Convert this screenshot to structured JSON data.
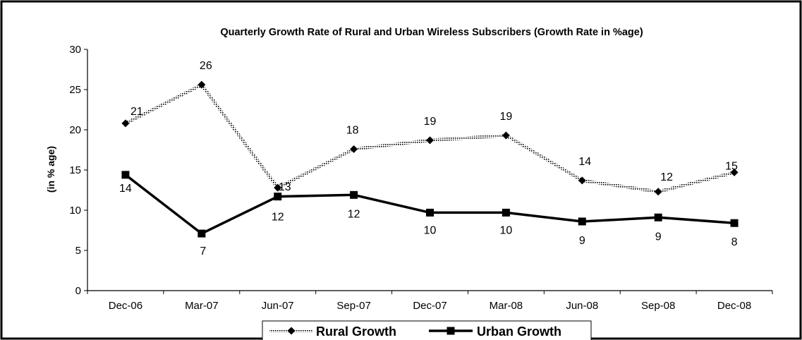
{
  "chart_data": {
    "type": "line",
    "title": "Quarterly Growth Rate of Rural and Urban Wireless Subscribers (Growth Rate in %age)",
    "xlabel": "",
    "ylabel": "(in % age)",
    "categories": [
      "Dec-06",
      "Mar-07",
      "Jun-07",
      "Sep-07",
      "Dec-07",
      "Mar-08",
      "Jun-08",
      "Sep-08",
      "Dec-08"
    ],
    "ylim": [
      0,
      30
    ],
    "yticks": [
      "0",
      "5",
      "10",
      "15",
      "20",
      "25",
      "30"
    ],
    "grid": false,
    "legend_position": "bottom",
    "series": [
      {
        "name": "Rural Growth",
        "values": [
          20.8,
          25.6,
          12.8,
          17.6,
          18.7,
          19.3,
          13.7,
          12.3,
          14.7
        ],
        "labels": [
          "21",
          "26",
          "13",
          "18",
          "19",
          "19",
          "14",
          "12",
          "15"
        ],
        "color": "#808080",
        "marker": "diamond"
      },
      {
        "name": "Urban Growth",
        "values": [
          14.4,
          7.1,
          11.7,
          11.9,
          9.7,
          9.7,
          8.6,
          9.1,
          8.4
        ],
        "labels": [
          "14",
          "7",
          "12",
          "12",
          "10",
          "10",
          "9",
          "9",
          "8"
        ],
        "color": "#000000",
        "marker": "square"
      }
    ]
  }
}
